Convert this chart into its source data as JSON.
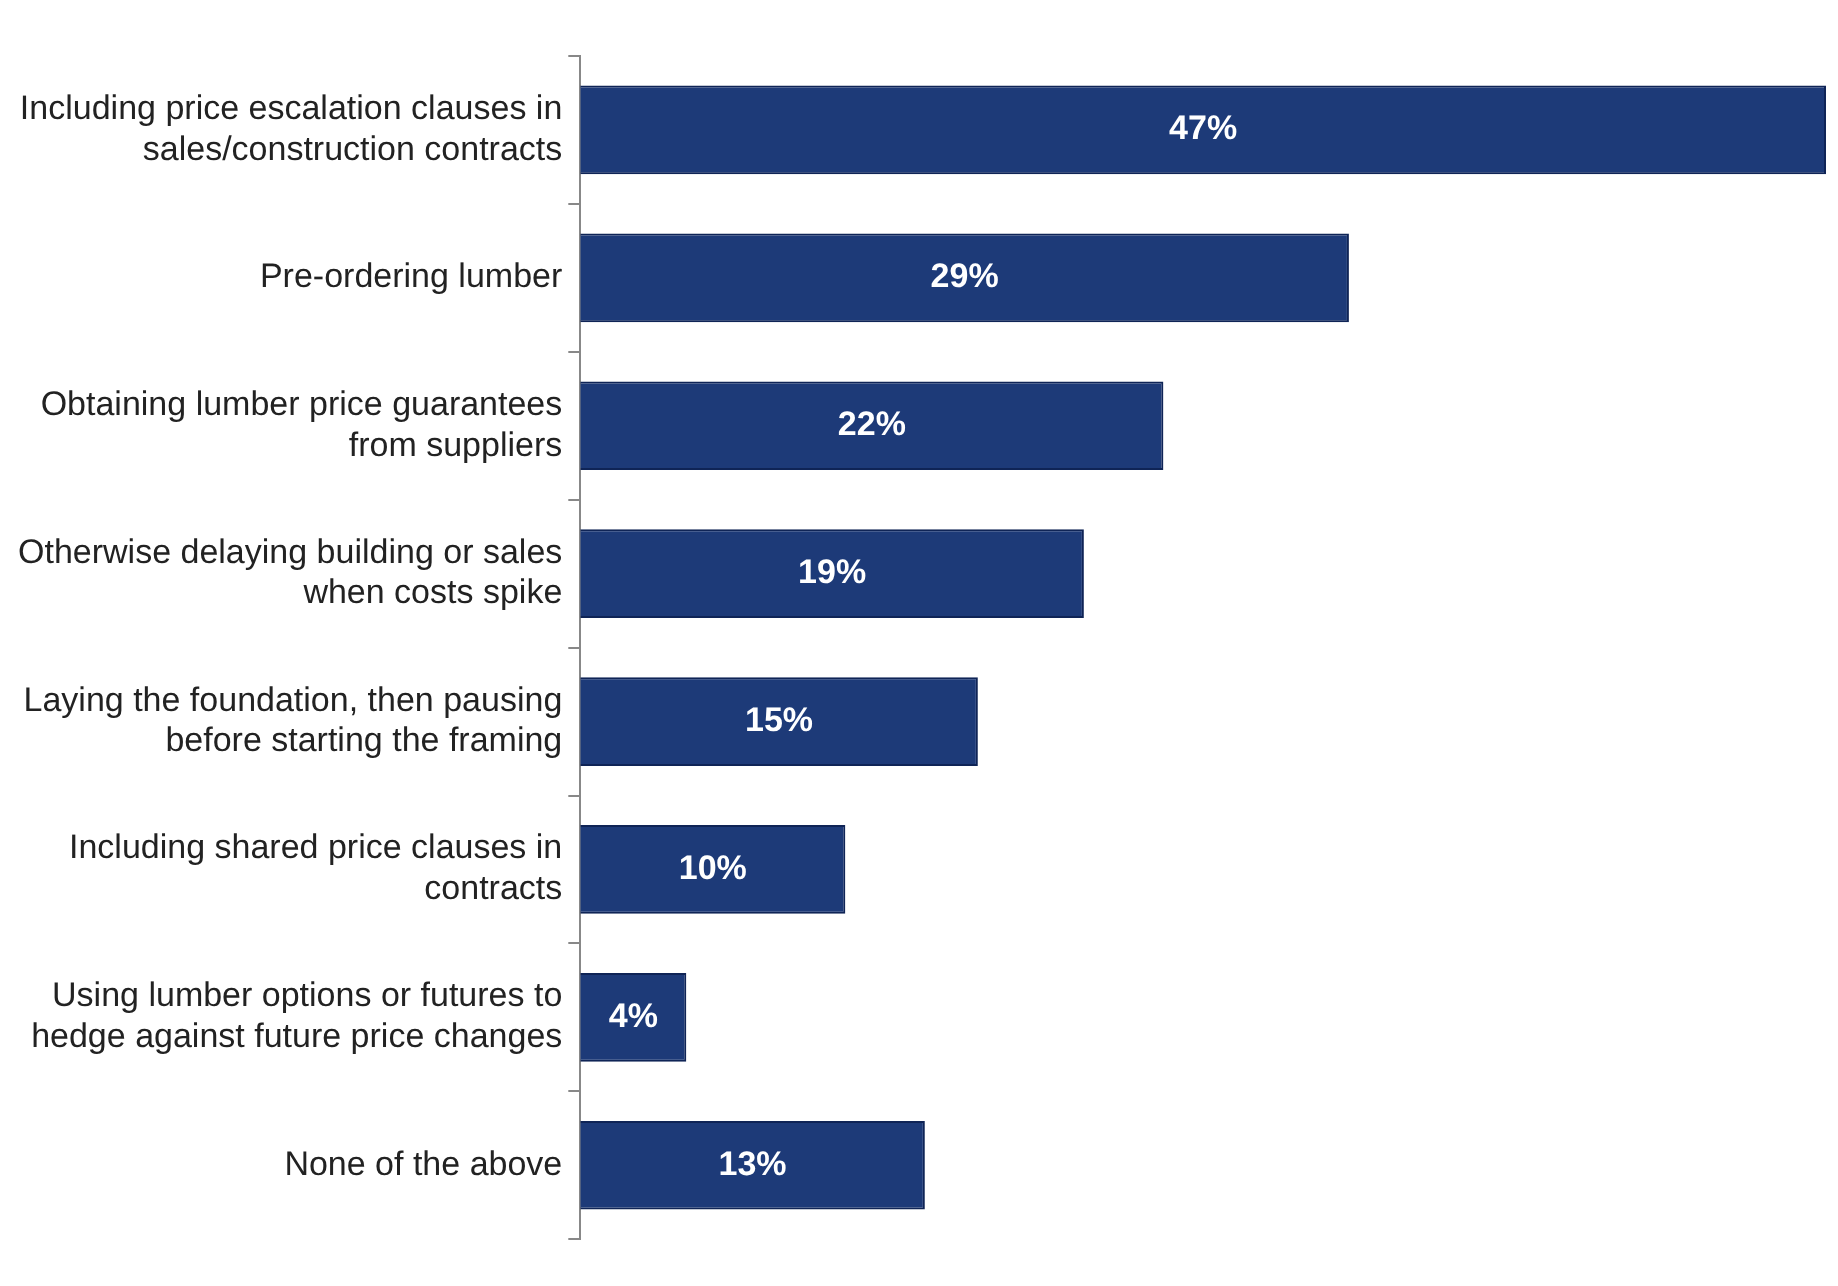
{
  "chart_data": {
    "type": "bar",
    "orientation": "horizontal",
    "categories": [
      "Including price escalation clauses in sales/construction contracts",
      "Pre-ordering lumber",
      "Obtaining lumber price guarantees from suppliers",
      "Otherwise delaying building or sales when costs spike",
      "Laying the foundation, then pausing before starting the framing",
      "Including shared price clauses in contracts",
      "Using lumber options or futures to hedge against future price changes",
      "None of the above"
    ],
    "values": [
      47,
      29,
      22,
      19,
      15,
      10,
      4,
      13
    ],
    "value_labels": [
      "47%",
      "29%",
      "22%",
      "19%",
      "15%",
      "10%",
      "4%",
      "13%"
    ],
    "color": "#1d3a78",
    "grid": false,
    "legend": false
  }
}
